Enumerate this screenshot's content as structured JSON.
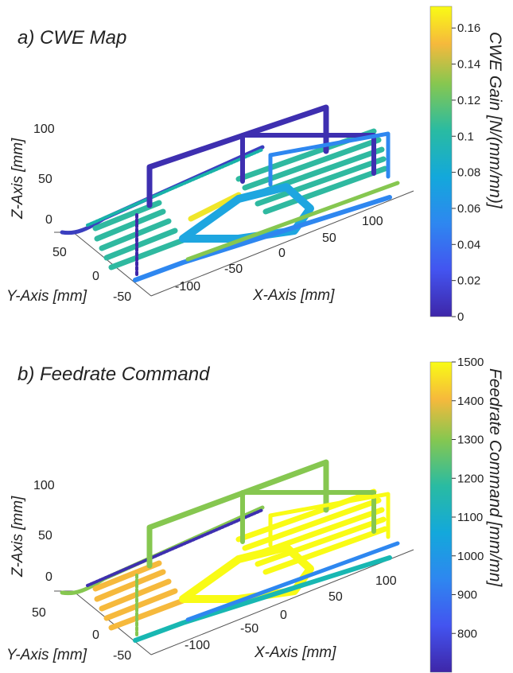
{
  "chart_data": [
    {
      "type": "scatter",
      "title": "a) CWE Map",
      "xlabel": "X-Axis [mm]",
      "ylabel": "Y-Axis [mm]",
      "zlabel": "Z-Axis [mm]",
      "xticks": [
        "-100",
        "-50",
        "0",
        "50",
        "100"
      ],
      "yticks": [
        "50",
        "0",
        "-50"
      ],
      "zticks": [
        "100",
        "50",
        "0"
      ],
      "colorbar": {
        "label": "CWE Gain [N/(mm/mn)]",
        "ticks": [
          "0.16",
          "0.14",
          "0.12",
          "0.1",
          "0.08",
          "0.06",
          "0.04",
          "0.02",
          "0"
        ],
        "range": [
          0,
          0.172
        ],
        "colormap": "parula"
      }
    },
    {
      "type": "scatter",
      "title": "b) Feedrate Command",
      "xlabel": "X-Axis [mm]",
      "ylabel": "Y-Axis [mm]",
      "zlabel": "Z-Axis [mm]",
      "xticks": [
        "-100",
        "-50",
        "0",
        "50",
        "100"
      ],
      "yticks": [
        "50",
        "0",
        "-50"
      ],
      "zticks": [
        "100",
        "50",
        "0"
      ],
      "colorbar": {
        "label": "Feedrate Command [mm/mn]",
        "ticks": [
          "1500",
          "1400",
          "1300",
          "1200",
          "1100",
          "1000",
          "900",
          "800"
        ],
        "range": [
          700,
          1500
        ],
        "colormap": "parula"
      }
    }
  ],
  "colors": {
    "parula_bottom": "#3e26a8",
    "parula_blue": "#2e87f0",
    "parula_teal": "#18b7b2",
    "parula_green": "#86c750",
    "parula_orange": "#fdbd3c",
    "parula_top": "#f9fb15"
  }
}
